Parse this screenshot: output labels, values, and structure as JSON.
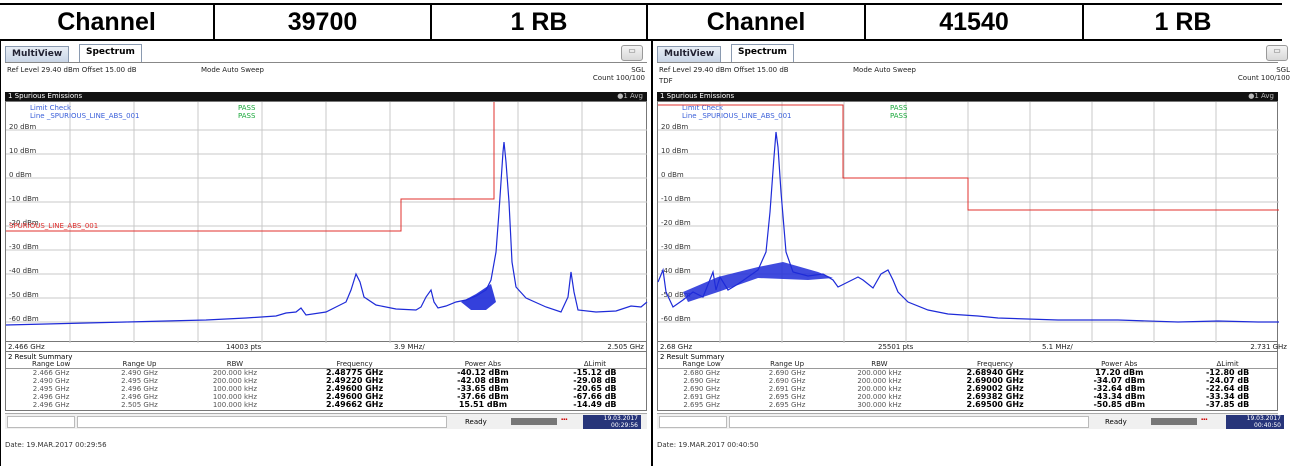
{
  "header": {
    "cells": [
      "Channel",
      "39700",
      "1 RB",
      "Channel",
      "41540",
      "1 RB"
    ]
  },
  "colors": {
    "trace": "#1e2bd8",
    "limit": "#e0302e",
    "legend_limit": "#d42020",
    "legend_line": "#3a5fd9",
    "pass": "#18a83a",
    "grid": "#c8c8c8"
  },
  "panels": [
    {
      "tab_multi": "MultiView",
      "tab_spectrum": "Spectrum",
      "ref_level": "Ref Level 29.40 dBm   Offset 15.00 dB",
      "mode": "Mode Auto Sweep",
      "sgl": "SGL",
      "count": "Count 100/100",
      "tdf": "",
      "title": "1 Spurious Emissions",
      "avg": "●1 Avg",
      "legend_limit_check": "Limit Check",
      "legend_line": "Line _SPURIOUS_LINE_ABS_001",
      "pass1": "PASS",
      "pass2": "PASS",
      "limit_line_label": "SPURIOUS_LINE_ABS_001",
      "y_ticks": [
        "20 dBm",
        "10 dBm",
        "0 dBm",
        "-10 dBm",
        "-20 dBm",
        "-30 dBm",
        "-40 dBm",
        "-50 dBm",
        "-60 dBm"
      ],
      "freq_start": "2.466 GHz",
      "pts": "14003 pts",
      "span": "3.9 MHz/",
      "freq_stop": "2.505 GHz",
      "result_title": "2 Result Summary",
      "cols": [
        "Range Low",
        "Range Up",
        "RBW",
        "Frequency",
        "Power Abs",
        "ΔLimit"
      ],
      "rows": [
        [
          "2.466 GHz",
          "2.490 GHz",
          "200.000 kHz",
          "2.48775 GHz",
          "-40.12 dBm",
          "-15.12 dB"
        ],
        [
          "2.490 GHz",
          "2.495 GHz",
          "200.000 kHz",
          "2.49220 GHz",
          "-42.08 dBm",
          "-29.08 dB"
        ],
        [
          "2.495 GHz",
          "2.496 GHz",
          "100.000 kHz",
          "2.49600 GHz",
          "-33.65 dBm",
          "-20.65 dB"
        ],
        [
          "2.496 GHz",
          "2.496 GHz",
          "100.000 kHz",
          "2.49600 GHz",
          "-37.66 dBm",
          "-67.66 dB"
        ],
        [
          "2.496 GHz",
          "2.505 GHz",
          "100.000 kHz",
          "2.49662 GHz",
          "15.51 dBm",
          "-14.49 dB"
        ]
      ],
      "status": "Ready",
      "status_date": "19.03.2017",
      "status_time": "00:29:56",
      "footer": "Date: 19.MAR.2017  00:29:56"
    },
    {
      "tab_multi": "MultiView",
      "tab_spectrum": "Spectrum",
      "ref_level": "Ref Level 29.40 dBm   Offset 15.00 dB",
      "mode": "Mode Auto Sweep",
      "sgl": "SGL",
      "count": "Count 100/100",
      "tdf": "TDF",
      "title": "1 Spurious Emissions",
      "avg": "●1 Avg",
      "legend_limit_check": "Limit Check",
      "legend_line": "Line _SPURIOUS_LINE_ABS_001",
      "pass1": "PASS",
      "pass2": "PASS",
      "limit_line_label": "",
      "y_ticks": [
        "20 dBm",
        "10 dBm",
        "0 dBm",
        "-10 dBm",
        "-20 dBm",
        "-30 dBm",
        "-40 dBm",
        "-50 dBm",
        "-60 dBm"
      ],
      "freq_start": "2.68 GHz",
      "pts": "25501 pts",
      "span": "5.1 MHz/",
      "freq_stop": "2.731 GHz",
      "result_title": "2 Result Summary",
      "cols": [
        "Range Low",
        "Range Up",
        "RBW",
        "Frequency",
        "Power Abs",
        "ΔLimit"
      ],
      "rows": [
        [
          "2.680 GHz",
          "2.690 GHz",
          "200.000 kHz",
          "2.68940 GHz",
          "17.20 dBm",
          "-12.80 dB"
        ],
        [
          "2.690 GHz",
          "2.690 GHz",
          "200.000 kHz",
          "2.69000 GHz",
          "-34.07 dBm",
          "-24.07 dB"
        ],
        [
          "2.690 GHz",
          "2.691 GHz",
          "200.000 kHz",
          "2.69002 GHz",
          "-32.64 dBm",
          "-22.64 dB"
        ],
        [
          "2.691 GHz",
          "2.695 GHz",
          "200.000 kHz",
          "2.69382 GHz",
          "-43.34 dBm",
          "-33.34 dB"
        ],
        [
          "2.695 GHz",
          "2.695 GHz",
          "300.000 kHz",
          "2.69500 GHz",
          "-50.85 dBm",
          "-37.85 dB"
        ]
      ],
      "status": "Ready",
      "status_date": "19.03.2017",
      "status_time": "00:40:50",
      "footer": "Date: 19.MAR.2017  00:40:50"
    }
  ]
}
